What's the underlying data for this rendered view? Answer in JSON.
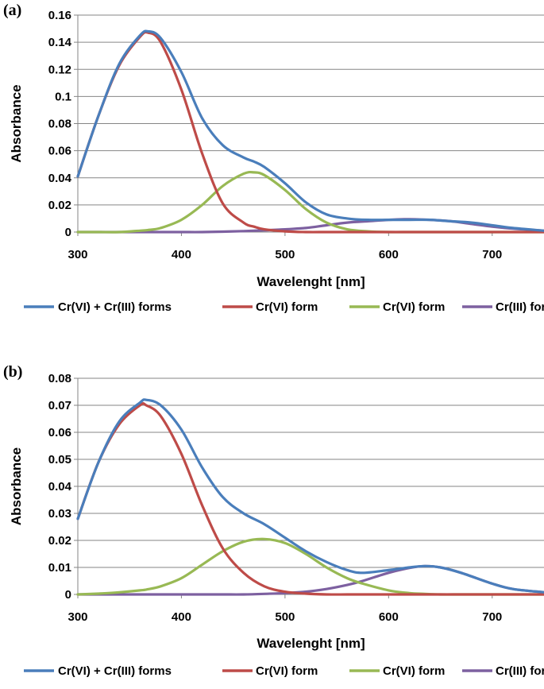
{
  "chart_data": [
    {
      "panel_label": "(a)",
      "type": "line",
      "xlabel": "Wavelenght [nm]",
      "ylabel": "Absorbance",
      "xlim": [
        300,
        750
      ],
      "ylim": [
        0,
        0.16
      ],
      "xticks": [
        300,
        400,
        500,
        600,
        700
      ],
      "xtick_labels": [
        "300",
        "400",
        "500",
        "600",
        "700"
      ],
      "yticks": [
        0,
        0.02,
        0.04,
        0.06,
        0.08,
        0.1,
        0.12,
        0.14,
        0.16
      ],
      "ytick_labels": [
        "0",
        "0.02",
        "0.04",
        "0.06",
        "0.08",
        "0.1",
        "0.12",
        "0.14",
        "0.16"
      ],
      "legend_position": "bottom",
      "x": [
        300,
        320,
        340,
        360,
        368,
        380,
        400,
        420,
        440,
        460,
        470,
        480,
        500,
        520,
        540,
        560,
        580,
        600,
        620,
        640,
        660,
        680,
        700,
        720,
        750
      ],
      "series": [
        {
          "name": "Cr(VI) + Cr(III) forms",
          "color": "#4a7ebb",
          "values": [
            0.041,
            0.086,
            0.124,
            0.145,
            0.148,
            0.143,
            0.118,
            0.084,
            0.064,
            0.055,
            0.052,
            0.048,
            0.036,
            0.022,
            0.013,
            0.01,
            0.009,
            0.009,
            0.009,
            0.009,
            0.008,
            0.007,
            0.005,
            0.003,
            0.001
          ]
        },
        {
          "name": "Cr(VI) form",
          "color": "#be4b48",
          "values": [
            0.041,
            0.086,
            0.123,
            0.144,
            0.147,
            0.14,
            0.105,
            0.058,
            0.021,
            0.007,
            0.004,
            0.002,
            0.0005,
            0,
            0,
            0,
            0,
            0,
            0,
            0,
            0,
            0,
            0,
            0,
            0
          ]
        },
        {
          "name": "Cr(VI) form",
          "color": "#98b954",
          "values": [
            0,
            0,
            0,
            0.001,
            0.0015,
            0.003,
            0.009,
            0.02,
            0.034,
            0.043,
            0.044,
            0.042,
            0.031,
            0.017,
            0.007,
            0.002,
            0.0005,
            0,
            0,
            0,
            0,
            0,
            0,
            0,
            0
          ]
        },
        {
          "name": "Cr(III) form",
          "color": "#7d60a0",
          "values": [
            0,
            0,
            0,
            0,
            0,
            0,
            0,
            0,
            0.0003,
            0.0007,
            0.001,
            0.0013,
            0.002,
            0.003,
            0.005,
            0.007,
            0.008,
            0.009,
            0.0095,
            0.009,
            0.008,
            0.006,
            0.004,
            0.0025,
            0.001
          ]
        }
      ]
    },
    {
      "panel_label": "(b)",
      "type": "line",
      "xlabel": "Wavelenght [nm]",
      "ylabel": "Absorbance",
      "xlim": [
        300,
        750
      ],
      "ylim": [
        0,
        0.08
      ],
      "xticks": [
        300,
        400,
        500,
        600,
        700
      ],
      "xtick_labels": [
        "300",
        "400",
        "500",
        "600",
        "700"
      ],
      "yticks": [
        0,
        0.01,
        0.02,
        0.03,
        0.04,
        0.05,
        0.06,
        0.07,
        0.08
      ],
      "ytick_labels": [
        "0",
        "0.01",
        "0.02",
        "0.03",
        "0.04",
        "0.05",
        "0.06",
        "0.07",
        "0.08"
      ],
      "legend_position": "bottom",
      "x": [
        300,
        320,
        340,
        360,
        366,
        380,
        400,
        420,
        440,
        460,
        480,
        500,
        520,
        540,
        560,
        575,
        600,
        620,
        635,
        650,
        670,
        700,
        720,
        750
      ],
      "series": [
        {
          "name": "Cr(VI) + Cr(III) forms",
          "color": "#4a7ebb",
          "values": [
            0.028,
            0.049,
            0.064,
            0.071,
            0.072,
            0.07,
            0.061,
            0.047,
            0.036,
            0.03,
            0.026,
            0.021,
            0.016,
            0.012,
            0.009,
            0.008,
            0.009,
            0.01,
            0.0105,
            0.01,
            0.008,
            0.004,
            0.002,
            0.0008
          ]
        },
        {
          "name": "Cr(VI) form",
          "color": "#be4b48",
          "values": [
            0.028,
            0.049,
            0.063,
            0.07,
            0.07,
            0.066,
            0.052,
            0.033,
            0.017,
            0.008,
            0.003,
            0.001,
            0.0003,
            0,
            0,
            0,
            0,
            0,
            0,
            0,
            0,
            0,
            0,
            0
          ]
        },
        {
          "name": "Cr(VI) form",
          "color": "#98b954",
          "values": [
            0,
            0.0003,
            0.0008,
            0.0015,
            0.0018,
            0.003,
            0.006,
            0.011,
            0.016,
            0.0195,
            0.0205,
            0.019,
            0.015,
            0.01,
            0.006,
            0.004,
            0.0015,
            0.0005,
            0.0002,
            0,
            0,
            0,
            0,
            0
          ]
        },
        {
          "name": "Cr(III) form",
          "color": "#7d60a0",
          "values": [
            0,
            0,
            0,
            0,
            0,
            0,
            0,
            0,
            0,
            0,
            0.0002,
            0.0005,
            0.001,
            0.002,
            0.0035,
            0.005,
            0.008,
            0.0098,
            0.0105,
            0.01,
            0.008,
            0.004,
            0.002,
            0.0008
          ]
        }
      ]
    }
  ]
}
